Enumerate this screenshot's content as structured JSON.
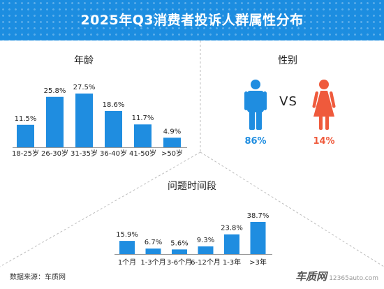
{
  "header": {
    "title": "2025年Q3消费者投诉人群属性分布"
  },
  "footer": {
    "source": "数据来源：车质网"
  },
  "watermark": {
    "logo_text": "车质网",
    "url": "12365auto.com"
  },
  "gender": {
    "title": "性别",
    "vs": "VS",
    "male": {
      "label": "86%",
      "value": 86,
      "color": "#1f8de0",
      "icon": "male-person-icon"
    },
    "female": {
      "label": "14%",
      "value": 14,
      "color": "#ef5a3c",
      "icon": "female-person-icon"
    }
  },
  "colors": {
    "bar": "#1f8de0",
    "header": "#1c8de0",
    "dash": "#bdbdbd"
  },
  "chart_data": [
    {
      "type": "bar",
      "title": "年龄",
      "categories": [
        "18-25岁",
        "26-30岁",
        "31-35岁",
        "36-40岁",
        "41-50岁",
        ">50岁"
      ],
      "values": [
        11.5,
        25.8,
        27.5,
        18.6,
        11.7,
        4.9
      ],
      "labels": [
        "11.5%",
        "25.8%",
        "27.5%",
        "18.6%",
        "11.7%",
        "4.9%"
      ],
      "ylim": [
        0,
        27.5
      ],
      "grid": false
    },
    {
      "type": "bar",
      "title": "问题时间段",
      "categories": [
        "1个月",
        "1-3个月",
        "3-6个月",
        "6-12个月",
        "1-3年",
        ">3年"
      ],
      "values": [
        15.9,
        6.7,
        5.6,
        9.3,
        23.8,
        38.7
      ],
      "labels": [
        "15.9%",
        "6.7%",
        "5.6%",
        "9.3%",
        "23.8%",
        "38.7%"
      ],
      "ylim": [
        0,
        38.7
      ],
      "grid": false
    }
  ]
}
